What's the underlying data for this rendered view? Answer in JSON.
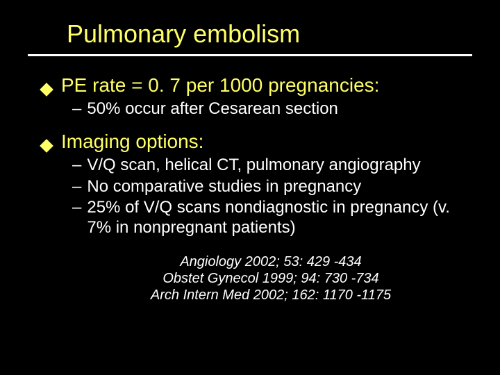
{
  "title": "Pulmonary embolism",
  "colors": {
    "background": "#000000",
    "title": "#ffff66",
    "bullet": "#ffff66",
    "rule": "#ffffff",
    "body": "#ffffff"
  },
  "typography": {
    "title_fontsize": 36,
    "level1_fontsize": 28,
    "level2_fontsize": 24,
    "ref_fontsize": 20,
    "ref_italic": true,
    "font_family": "Arial"
  },
  "sections": [
    {
      "text": "PE rate = 0. 7 per 1000 pregnancies:",
      "sub": [
        "50% occur after Cesarean section"
      ]
    },
    {
      "text": "Imaging options:",
      "sub": [
        "V/Q scan, helical CT, pulmonary angiography",
        "No comparative studies in pregnancy",
        "25% of V/Q scans nondiagnostic in pregnancy (v. 7% in nonpregnant patients)"
      ]
    }
  ],
  "references": [
    "Angiology 2002; 53: 429 -434",
    "Obstet Gynecol 1999; 94: 730 -734",
    "Arch Intern Med 2002; 162: 1170 -1175"
  ]
}
